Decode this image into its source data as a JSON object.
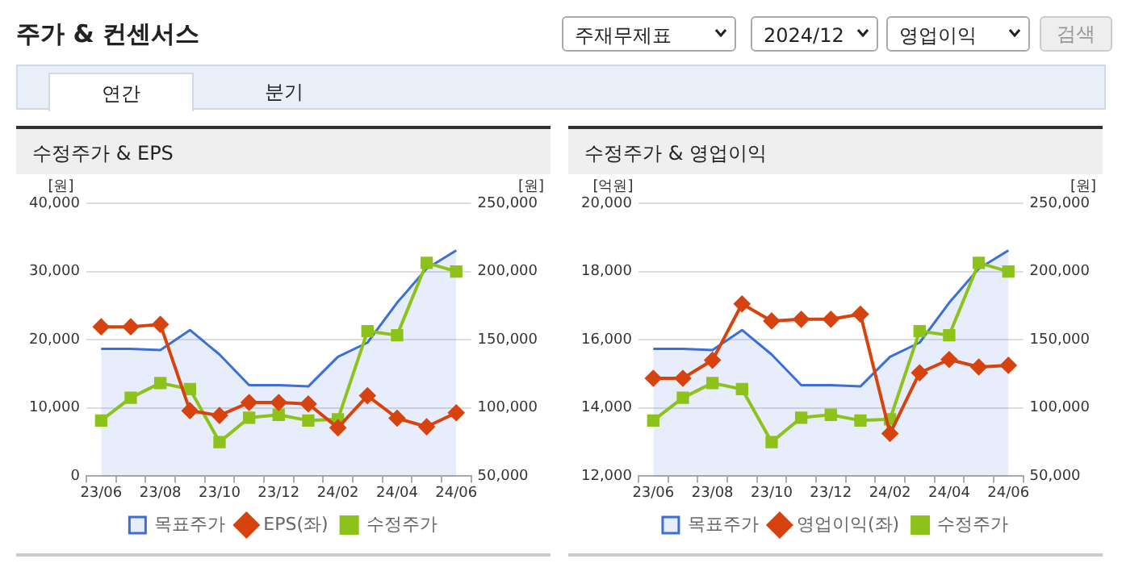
{
  "chart_data": [
    {
      "type": "other",
      "title": "주가 & 컨센서스",
      "annotations": [
        "주재무제표",
        "2024/12",
        "영업이익",
        "검색",
        "연간",
        "분기"
      ]
    },
    {
      "type": "line",
      "title": "수정주가 & EPS",
      "ylabel": "[원]",
      "y2label": "[원]",
      "categories": [
        "23/06",
        null,
        "23/08",
        null,
        "23/10",
        null,
        "23/12",
        null,
        "24/02",
        null,
        "24/04",
        null,
        "24/06"
      ],
      "series": [
        {
          "name": "목표주가",
          "type": "area",
          "axis": "y2",
          "color": "#3b6fd6",
          "marker": "none",
          "values": [
            143300,
            143300,
            142500,
            157100,
            139200,
            116700,
            116700,
            115800,
            137500,
            147900,
            177100,
            202100,
            215400
          ]
        },
        {
          "name": "EPS(좌)",
          "type": "line",
          "color": "#d7430f",
          "marker": "diamond",
          "values": [
            21900,
            21900,
            22250,
            9600,
            8900,
            10800,
            10800,
            10600,
            7100,
            11800,
            8500,
            7250,
            9300
          ]
        },
        {
          "name": "수정주가",
          "type": "line",
          "axis": "y2",
          "color": "#8cc21a",
          "marker": "square",
          "values": [
            90800,
            107500,
            118300,
            113800,
            75000,
            92900,
            95000,
            90800,
            91700,
            156300,
            153300,
            206300,
            200000
          ]
        }
      ],
      "ylim": [
        0,
        40000
      ],
      "yticks": [
        0,
        {
          "value": 10000,
          "label": "10,000"
        },
        {
          "value": 20000,
          "label": "20,000"
        },
        {
          "value": 30000,
          "label": "30,000"
        },
        {
          "value": 40000,
          "label": "40,000"
        }
      ],
      "y2lim": [
        50000,
        250000
      ],
      "y2ticks": [
        {
          "value": 50000,
          "label": "50,000"
        },
        {
          "value": 100000,
          "label": "100,000"
        },
        {
          "value": 150000,
          "label": "150,000"
        },
        {
          "value": 200000,
          "label": "200,000"
        },
        {
          "value": 250000,
          "label": "250,000"
        }
      ],
      "grid": "y",
      "legend": "bottom",
      "line_style": "solid"
    },
    {
      "type": "line",
      "title": "수정주가 & 영업이익",
      "ylabel": "[억원]",
      "y2label": "[원]",
      "categories": [
        "23/06",
        null,
        "23/08",
        null,
        "23/10",
        null,
        "23/12",
        null,
        "24/02",
        null,
        "24/04",
        null,
        "24/06"
      ],
      "series": [
        {
          "name": "목표주가",
          "type": "area",
          "axis": "y2",
          "color": "#3b6fd6",
          "marker": "none",
          "values": [
            143300,
            143300,
            142500,
            157100,
            139200,
            116700,
            116700,
            115800,
            137500,
            147900,
            177100,
            202100,
            215400
          ]
        },
        {
          "name": "영업이익(좌)",
          "type": "line",
          "color": "#d7430f",
          "marker": "diamond",
          "values": [
            14870,
            14870,
            15400,
            17050,
            16550,
            16600,
            16600,
            16750,
            13250,
            15030,
            15420,
            15200,
            15250
          ]
        },
        {
          "name": "수정주가",
          "type": "line",
          "axis": "y2",
          "color": "#8cc21a",
          "marker": "square",
          "values": [
            90800,
            107500,
            118300,
            113800,
            75000,
            92900,
            95000,
            90800,
            91700,
            156300,
            153300,
            206300,
            200000
          ]
        }
      ],
      "ylim": [
        12000,
        20000
      ],
      "yticks": [
        {
          "value": 12000,
          "label": "12,000"
        },
        {
          "value": 14000,
          "label": "14,000"
        },
        {
          "value": 16000,
          "label": "16,000"
        },
        {
          "value": 18000,
          "label": "18,000"
        },
        {
          "value": 20000,
          "label": "20,000"
        }
      ],
      "y2lim": [
        50000,
        250000
      ],
      "y2ticks": [
        {
          "value": 50000,
          "label": "50,000"
        },
        {
          "value": 100000,
          "label": "100,000"
        },
        {
          "value": 150000,
          "label": "150,000"
        },
        {
          "value": 200000,
          "label": "200,000"
        },
        {
          "value": 250000,
          "label": "250,000"
        }
      ],
      "grid": "y",
      "legend": "bottom",
      "line_style": "solid"
    }
  ]
}
